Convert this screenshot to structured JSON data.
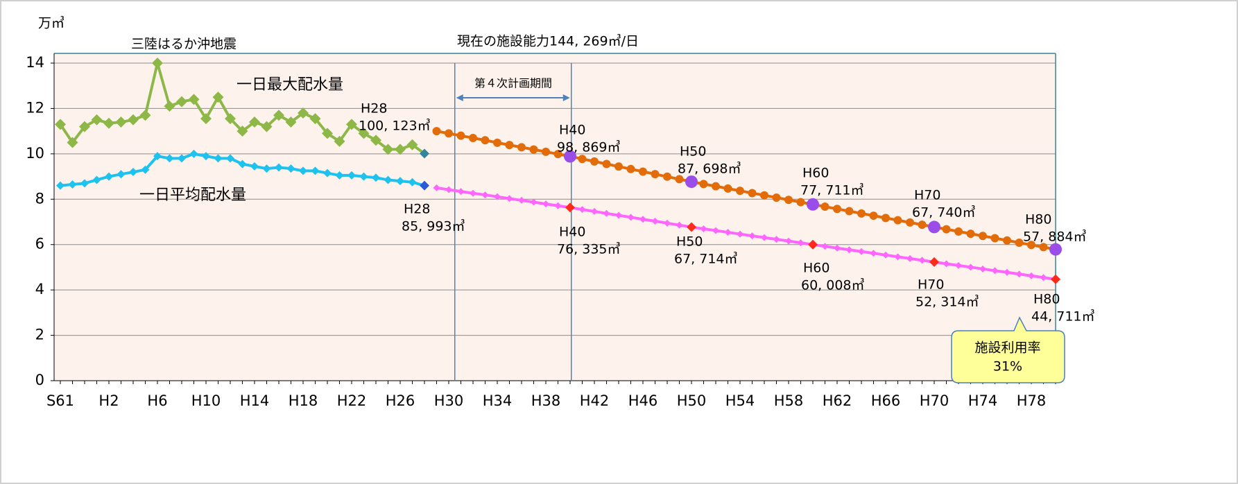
{
  "chart_data": {
    "type": "line",
    "y_unit": "万㎥",
    "categories": [
      "S61",
      null,
      null,
      null,
      "H2",
      null,
      null,
      null,
      "H6",
      null,
      null,
      null,
      "H10",
      null,
      null,
      null,
      "H14",
      null,
      null,
      null,
      "H18",
      null,
      null,
      null,
      "H22",
      null,
      null,
      null,
      "H26",
      null,
      null,
      null,
      "H30",
      null,
      null,
      null,
      "H34",
      null,
      null,
      null,
      "H38",
      null,
      null,
      null,
      "H42",
      null,
      null,
      null,
      "H46",
      null,
      null,
      null,
      "H50",
      null,
      null,
      null,
      "H54",
      null,
      null,
      null,
      "H58",
      null,
      null,
      null,
      "H62",
      null,
      null,
      null,
      "H66",
      null,
      null,
      null,
      "H70",
      null,
      null,
      null,
      "H74",
      null,
      null,
      null,
      "H78",
      null,
      null
    ],
    "ylim": [
      0,
      14
    ],
    "yticks": [
      0,
      2,
      4,
      6,
      8,
      10,
      12,
      14
    ],
    "grid": true,
    "capacity": {
      "value": 14.4269,
      "label": "現在の施設能力144, 269㎥/日"
    },
    "series": [
      {
        "name": "一日最大配水量",
        "color": "#8db847",
        "marker": "diamond",
        "values": [
          11.3,
          10.5,
          11.2,
          11.5,
          11.35,
          11.4,
          11.5,
          11.7,
          14.0,
          12.1,
          12.3,
          12.4,
          11.55,
          12.5,
          11.55,
          11.0,
          11.4,
          11.2,
          11.7,
          11.4,
          11.8,
          11.55,
          10.9,
          10.55,
          11.3,
          10.9,
          10.6,
          10.2,
          10.2,
          10.4,
          10.0123,
          null,
          null,
          null,
          null,
          null,
          null,
          null,
          null,
          null,
          null,
          null,
          null,
          null,
          null,
          null,
          null,
          null,
          null,
          null,
          null,
          null,
          null,
          null,
          null,
          null,
          null,
          null,
          null,
          null,
          null,
          null,
          null,
          null,
          null,
          null,
          null,
          null,
          null,
          null,
          null,
          null,
          null,
          null,
          null,
          null,
          null,
          null,
          null,
          null,
          null,
          null,
          null
        ]
      },
      {
        "color": "#e36c0a",
        "marker": "circle",
        "values": [
          null,
          null,
          null,
          null,
          null,
          null,
          null,
          null,
          null,
          null,
          null,
          null,
          null,
          null,
          null,
          null,
          null,
          null,
          null,
          null,
          null,
          null,
          null,
          null,
          null,
          null,
          null,
          null,
          null,
          null,
          null,
          11.0,
          10.9,
          10.8,
          10.7,
          10.6,
          10.49,
          10.39,
          10.29,
          10.19,
          10.09,
          9.99,
          9.8869,
          9.775,
          9.664,
          9.552,
          9.44,
          9.329,
          9.217,
          9.105,
          8.993,
          8.882,
          8.7698,
          8.67,
          8.57,
          8.47,
          8.37,
          8.27,
          8.171,
          8.071,
          7.971,
          7.871,
          7.7711,
          7.671,
          7.572,
          7.472,
          7.372,
          7.273,
          7.173,
          7.073,
          6.973,
          6.874,
          6.774,
          6.675,
          6.577,
          6.478,
          6.38,
          6.281,
          6.182,
          6.084,
          5.985,
          5.887,
          5.7884
        ]
      },
      {
        "name": "一日平均配水量",
        "color": "#1ec2ef",
        "marker": "diamond",
        "values": [
          8.6,
          8.65,
          8.7,
          8.85,
          9.0,
          9.1,
          9.2,
          9.3,
          9.9,
          9.8,
          9.8,
          10.0,
          9.9,
          9.8,
          9.8,
          9.55,
          9.45,
          9.35,
          9.4,
          9.35,
          9.25,
          9.25,
          9.15,
          9.05,
          9.05,
          9.0,
          8.95,
          8.85,
          8.8,
          8.75,
          8.5993,
          null,
          null,
          null,
          null,
          null,
          null,
          null,
          null,
          null,
          null,
          null,
          null,
          null,
          null,
          null,
          null,
          null,
          null,
          null,
          null,
          null,
          null,
          null,
          null,
          null,
          null,
          null,
          null,
          null,
          null,
          null,
          null,
          null,
          null,
          null,
          null,
          null,
          null,
          null,
          null,
          null,
          null,
          null,
          null,
          null,
          null,
          null,
          null,
          null,
          null,
          null,
          null
        ]
      },
      {
        "color": "#ff66ff",
        "marker": "diamond",
        "values": [
          null,
          null,
          null,
          null,
          null,
          null,
          null,
          null,
          null,
          null,
          null,
          null,
          null,
          null,
          null,
          null,
          null,
          null,
          null,
          null,
          null,
          null,
          null,
          null,
          null,
          null,
          null,
          null,
          null,
          null,
          null,
          8.5,
          8.42,
          8.34,
          8.26,
          8.19,
          8.11,
          8.03,
          7.95,
          7.87,
          7.79,
          7.71,
          7.6335,
          7.548,
          7.461,
          7.375,
          7.289,
          7.202,
          7.116,
          7.03,
          6.944,
          6.857,
          6.7714,
          6.694,
          6.617,
          6.54,
          6.463,
          6.386,
          6.309,
          6.232,
          6.155,
          6.078,
          6.0008,
          5.924,
          5.847,
          5.77,
          5.693,
          5.616,
          5.539,
          5.462,
          5.385,
          5.308,
          5.2314,
          5.155,
          5.079,
          5.003,
          4.927,
          4.851,
          4.775,
          4.699,
          4.623,
          4.547,
          4.4711
        ]
      }
    ],
    "annotations": [
      {
        "lines": [
          "三陸はるか沖地震"
        ]
      },
      {
        "lines": [
          "第４次計画期間"
        ]
      },
      {
        "lines": [
          "H28",
          "100, 123㎥"
        ]
      },
      {
        "lines": [
          "H40",
          "98, 869㎥"
        ]
      },
      {
        "lines": [
          "H50",
          "87, 698㎥"
        ]
      },
      {
        "lines": [
          "H60",
          "77, 711㎥"
        ]
      },
      {
        "lines": [
          "H70",
          "67, 740㎥"
        ]
      },
      {
        "lines": [
          "H80",
          "57, 884㎥"
        ]
      },
      {
        "lines": [
          "H28",
          "85, 993㎥"
        ]
      },
      {
        "lines": [
          "H40",
          "76, 335㎥"
        ]
      },
      {
        "lines": [
          "H50",
          "67, 714㎥"
        ]
      },
      {
        "lines": [
          "H60",
          "60, 008㎥"
        ]
      },
      {
        "lines": [
          "H70",
          "52, 314㎥"
        ]
      },
      {
        "lines": [
          "H80",
          "44, 711㎥"
        ]
      }
    ],
    "callout": [
      "施設利用率",
      "31%"
    ]
  }
}
